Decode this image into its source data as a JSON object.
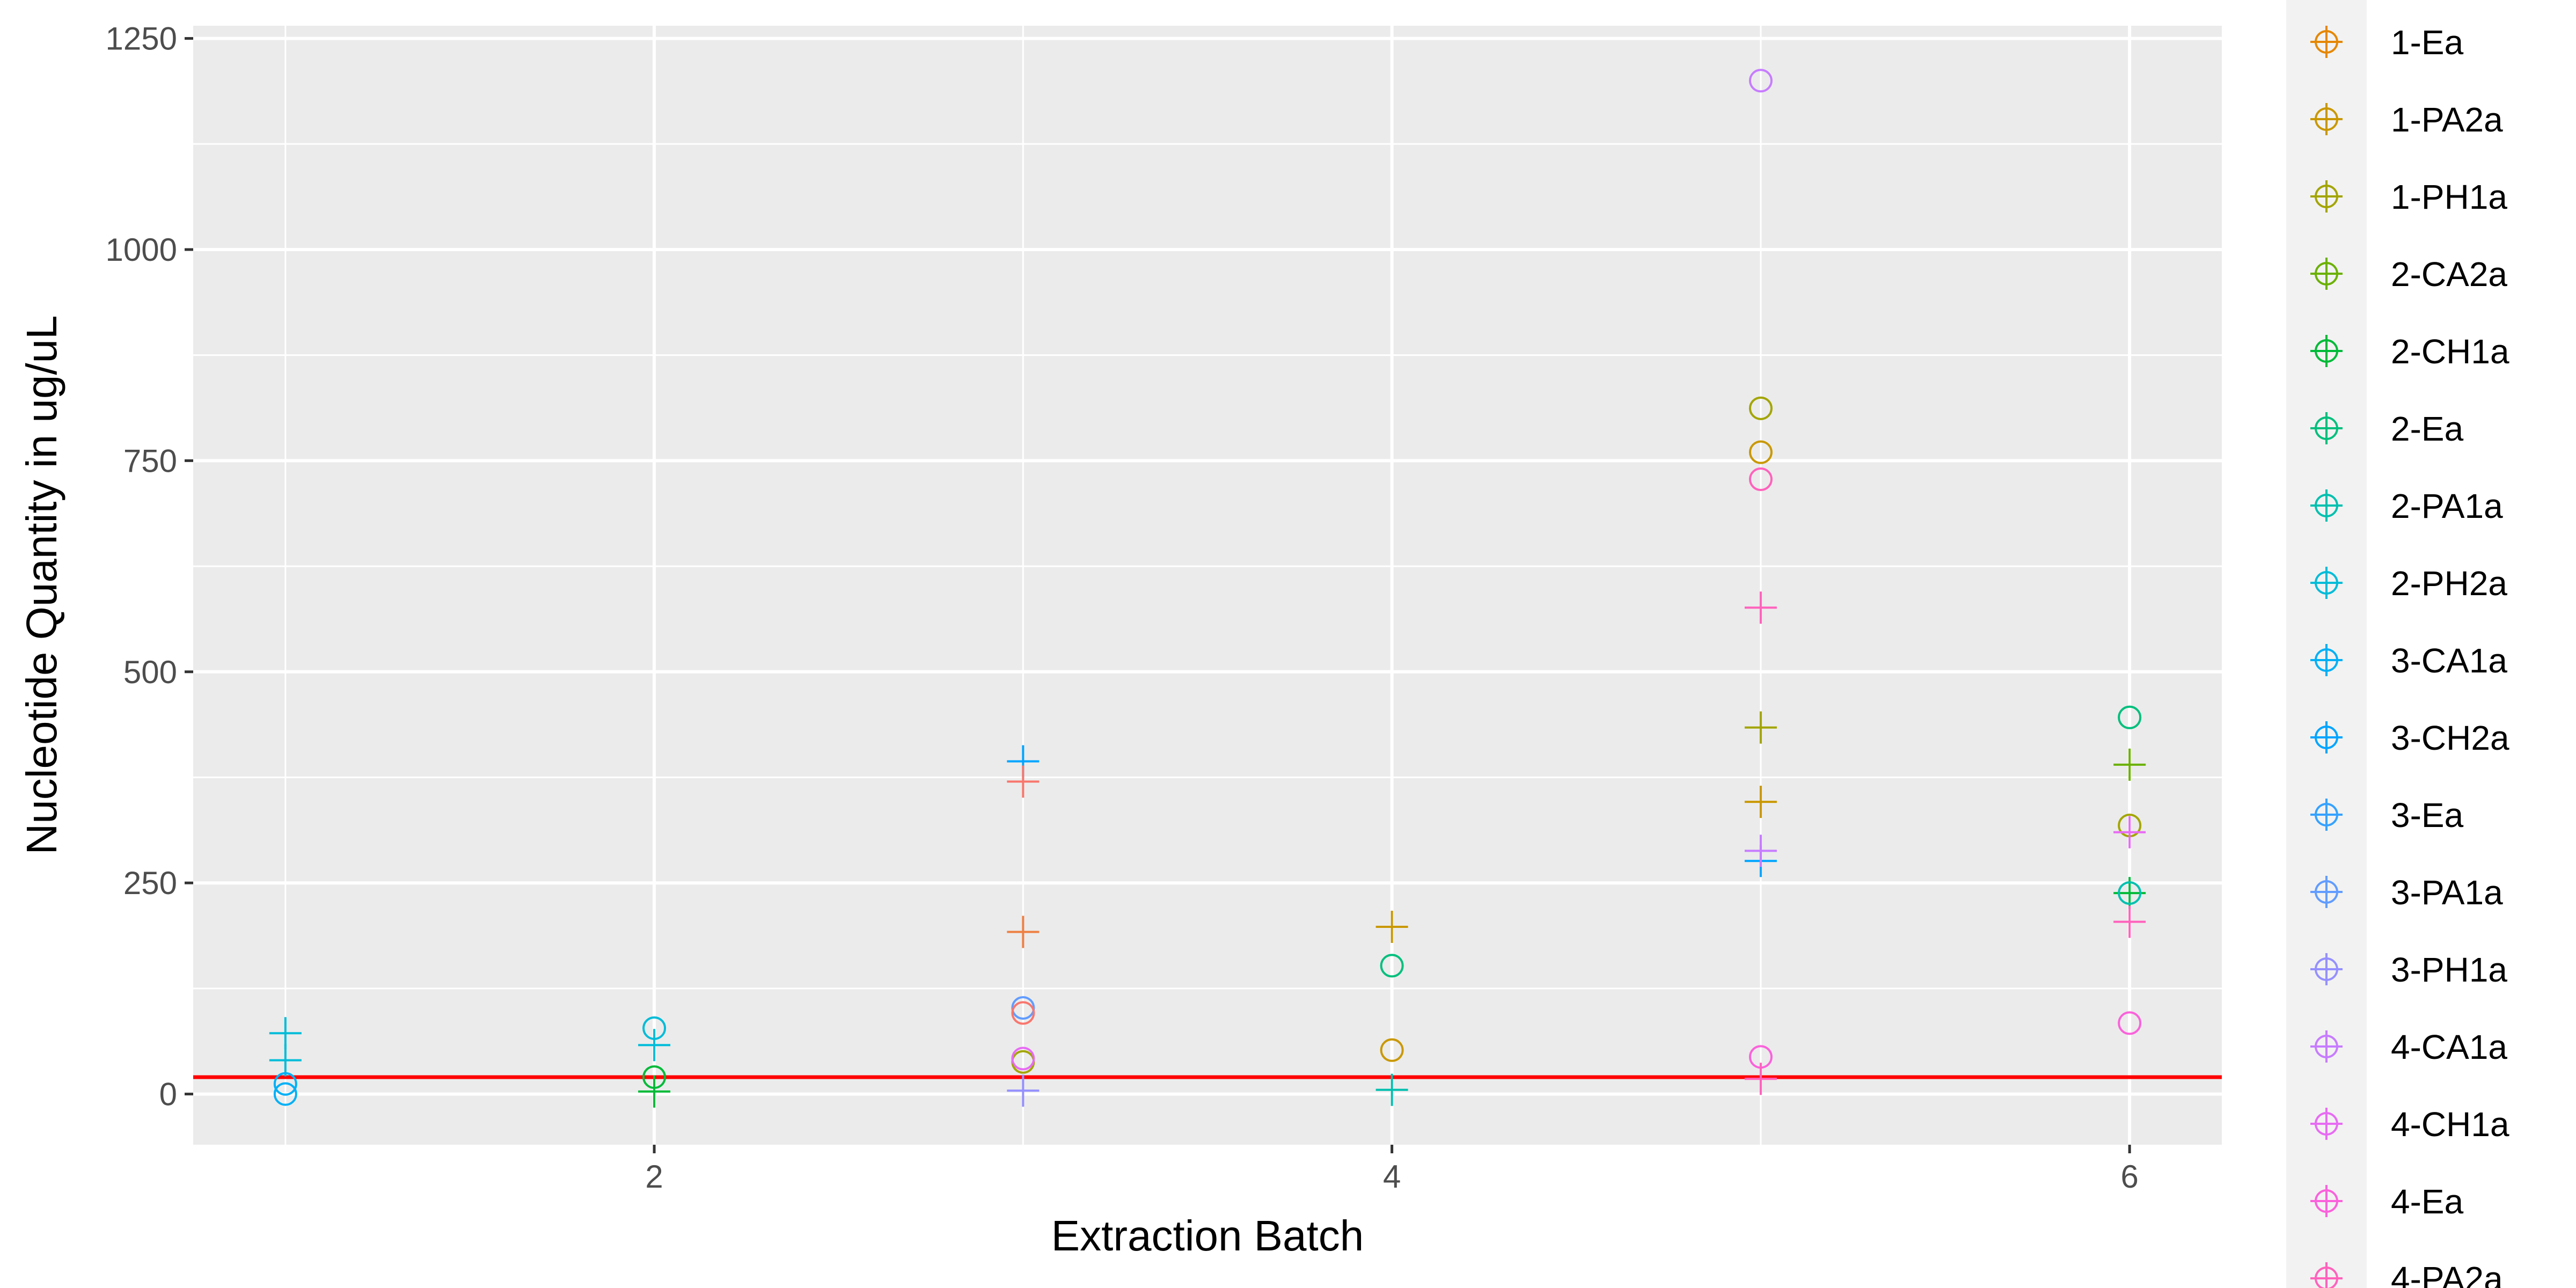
{
  "chart_data": {
    "type": "scatter",
    "title": "",
    "xlabel": "Extraction Batch",
    "ylabel": "Nucleotide Quantity in ug/uL",
    "xlim": [
      0.75,
      6.25
    ],
    "ylim": [
      -60,
      1265
    ],
    "x_ticks": [
      2,
      4,
      6
    ],
    "y_ticks": [
      0,
      250,
      500,
      750,
      1000,
      1250
    ],
    "grid": true,
    "legend_position": "right",
    "reference_line": {
      "y": 20,
      "color": "#ff0000"
    },
    "markers": {
      "circle": "open circle",
      "plus": "plus"
    },
    "series": [
      {
        "name": "1-Ea",
        "color": "#E58700",
        "points": []
      },
      {
        "name": "1-PA2a",
        "color": "#C99800",
        "points": [
          {
            "x": 4,
            "y": 198,
            "marker": "plus"
          },
          {
            "x": 5,
            "y": 346,
            "marker": "plus"
          },
          {
            "x": 5,
            "y": 760,
            "marker": "circle"
          },
          {
            "x": 4,
            "y": 52,
            "marker": "circle"
          }
        ]
      },
      {
        "name": "1-PH1a",
        "color": "#A3A500",
        "points": [
          {
            "x": 5,
            "y": 812,
            "marker": "circle"
          },
          {
            "x": 5,
            "y": 434,
            "marker": "plus"
          },
          {
            "x": 6,
            "y": 318,
            "marker": "circle"
          },
          {
            "x": 3,
            "y": 38,
            "marker": "circle"
          }
        ]
      },
      {
        "name": "2-CA2a",
        "color": "#6BB100",
        "points": [
          {
            "x": 6,
            "y": 390,
            "marker": "plus"
          }
        ]
      },
      {
        "name": "2-CH1a",
        "color": "#00BA38",
        "points": [
          {
            "x": 2,
            "y": 3,
            "marker": "plus"
          },
          {
            "x": 2,
            "y": 20,
            "marker": "circle"
          },
          {
            "x": 6,
            "y": 238,
            "marker": "plus"
          }
        ]
      },
      {
        "name": "2-Ea",
        "color": "#00BF7D",
        "points": [
          {
            "x": 6,
            "y": 446,
            "marker": "circle"
          },
          {
            "x": 4,
            "y": 152,
            "marker": "circle"
          }
        ]
      },
      {
        "name": "2-PA1a",
        "color": "#00C0AF",
        "points": [
          {
            "x": 4,
            "y": 5,
            "marker": "plus"
          },
          {
            "x": 6,
            "y": 238,
            "marker": "circle"
          }
        ]
      },
      {
        "name": "2-PH2a",
        "color": "#00BCD8",
        "points": [
          {
            "x": 2,
            "y": 58,
            "marker": "plus"
          },
          {
            "x": 2,
            "y": 78,
            "marker": "circle"
          },
          {
            "x": 1,
            "y": 72,
            "marker": "plus"
          },
          {
            "x": 1,
            "y": 40,
            "marker": "plus"
          }
        ]
      },
      {
        "name": "3-CA1a",
        "color": "#00B0F6",
        "points": [
          {
            "x": 1,
            "y": 0,
            "marker": "circle"
          },
          {
            "x": 1,
            "y": 12,
            "marker": "circle"
          }
        ]
      },
      {
        "name": "3-CH2a",
        "color": "#00A5FF",
        "points": [
          {
            "x": 5,
            "y": 276,
            "marker": "plus"
          },
          {
            "x": 3,
            "y": 394,
            "marker": "plus"
          }
        ]
      },
      {
        "name": "3-Ea",
        "color": "#35A2FF",
        "points": []
      },
      {
        "name": "3-PA1a",
        "color": "#619CFF",
        "points": [
          {
            "x": 3,
            "y": 102,
            "marker": "circle"
          }
        ]
      },
      {
        "name": "3-PH1a",
        "color": "#9590FF",
        "points": [
          {
            "x": 3,
            "y": 4,
            "marker": "plus"
          }
        ]
      },
      {
        "name": "4-CA1a",
        "color": "#C77CFF",
        "points": [
          {
            "x": 5,
            "y": 1200,
            "marker": "circle"
          },
          {
            "x": 5,
            "y": 288,
            "marker": "plus"
          }
        ]
      },
      {
        "name": "4-CH1a",
        "color": "#E76BF3",
        "points": [
          {
            "x": 6,
            "y": 310,
            "marker": "plus"
          },
          {
            "x": 3,
            "y": 42,
            "marker": "circle"
          }
        ]
      },
      {
        "name": "4-Ea",
        "color": "#FA62DB",
        "points": [
          {
            "x": 6,
            "y": 84,
            "marker": "circle"
          },
          {
            "x": 5,
            "y": 44,
            "marker": "circle"
          }
        ]
      },
      {
        "name": "4-PA2a",
        "color": "#FF62BC",
        "points": [
          {
            "x": 5,
            "y": 576,
            "marker": "plus"
          },
          {
            "x": 5,
            "y": 728,
            "marker": "circle"
          },
          {
            "x": 5,
            "y": 18,
            "marker": "plus"
          },
          {
            "x": 6,
            "y": 204,
            "marker": "plus"
          }
        ]
      },
      {
        "name": "",
        "color": "#F8766D",
        "points": [
          {
            "x": 3,
            "y": 370,
            "marker": "plus"
          },
          {
            "x": 3,
            "y": 96,
            "marker": "circle"
          }
        ]
      },
      {
        "name": "",
        "color": "#EE8043",
        "points": [
          {
            "x": 3,
            "y": 192,
            "marker": "plus"
          }
        ]
      }
    ]
  }
}
